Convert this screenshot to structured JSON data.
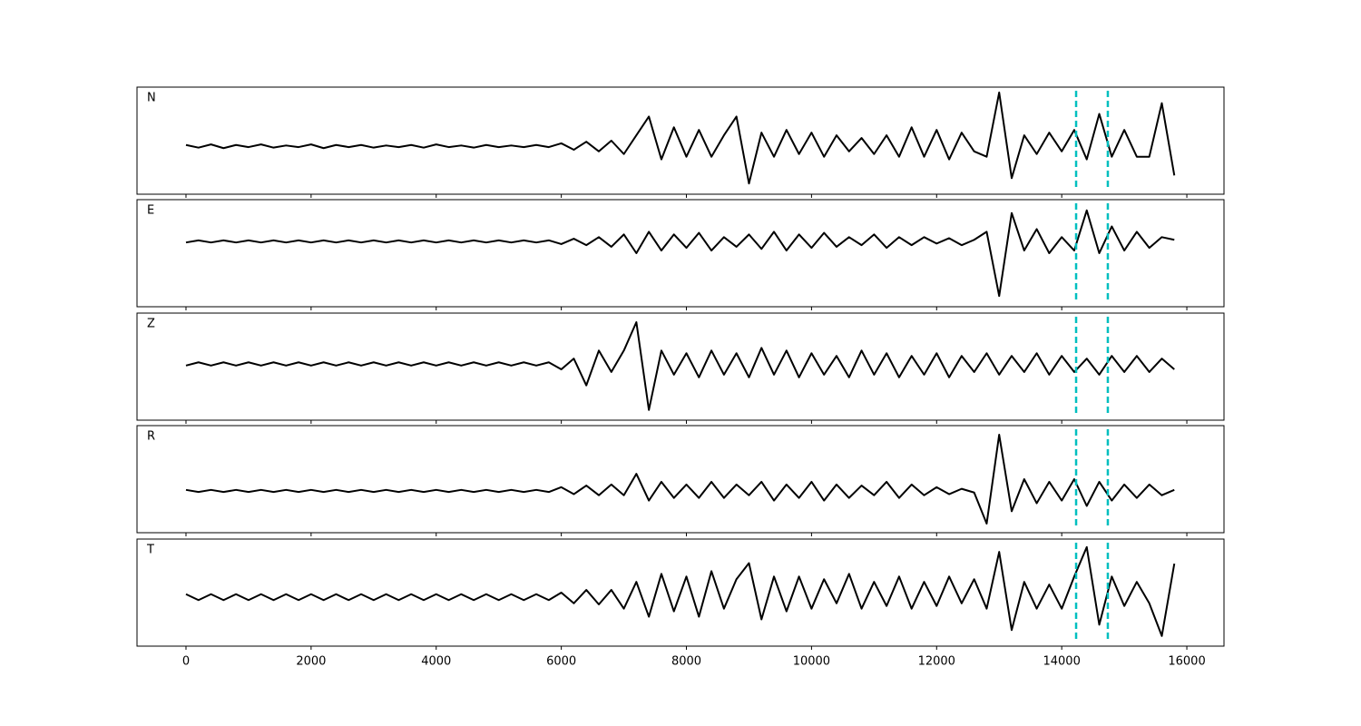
{
  "chart_data": [
    {
      "type": "line",
      "label": "N",
      "xlim": [
        -783,
        16594
      ],
      "ylim": [
        -1,
        1
      ],
      "x": [
        0,
        200,
        400,
        600,
        800,
        1000,
        1200,
        1400,
        1600,
        1800,
        2000,
        2200,
        2400,
        2600,
        2800,
        3000,
        3200,
        3400,
        3600,
        3800,
        4000,
        4200,
        4400,
        4600,
        4800,
        5000,
        5200,
        5400,
        5600,
        5800,
        6000,
        6200,
        6400,
        6600,
        6800,
        7000,
        7200,
        7400,
        7600,
        7800,
        8000,
        8200,
        8400,
        8600,
        8800,
        9000,
        9200,
        9400,
        9600,
        9800,
        10000,
        10200,
        10400,
        10600,
        10800,
        11000,
        11200,
        11400,
        11600,
        11800,
        12000,
        12200,
        12400,
        12600,
        12800,
        13000,
        13200,
        13400,
        13600,
        13800,
        14000,
        14200,
        14400,
        14600,
        14800,
        15000,
        15200,
        15400,
        15600,
        15800
      ],
      "series": [
        {
          "color": "#000000",
          "values": [
            -0.08,
            -0.13,
            -0.07,
            -0.14,
            -0.08,
            -0.12,
            -0.07,
            -0.13,
            -0.09,
            -0.12,
            -0.07,
            -0.14,
            -0.08,
            -0.12,
            -0.08,
            -0.13,
            -0.09,
            -0.12,
            -0.08,
            -0.13,
            -0.07,
            -0.12,
            -0.09,
            -0.13,
            -0.08,
            -0.12,
            -0.09,
            -0.12,
            -0.08,
            -0.12,
            -0.05,
            -0.17,
            -0.02,
            -0.2,
            0.0,
            -0.25,
            0.1,
            0.45,
            -0.35,
            0.25,
            -0.3,
            0.2,
            -0.3,
            0.1,
            0.45,
            -0.8,
            0.15,
            -0.3,
            0.2,
            -0.25,
            0.15,
            -0.3,
            0.1,
            -0.2,
            0.05,
            -0.25,
            0.1,
            -0.3,
            0.25,
            -0.3,
            0.2,
            -0.35,
            0.15,
            -0.2,
            -0.3,
            0.9,
            -0.7,
            0.1,
            -0.25,
            0.15,
            -0.2,
            0.2,
            -0.35,
            0.5,
            -0.3,
            0.2,
            -0.3,
            -0.3,
            0.7,
            -0.65
          ]
        }
      ],
      "vlines": [
        14230,
        14737
      ],
      "vline_color": "#00bfbf"
    },
    {
      "type": "line",
      "label": "E",
      "xlim": [
        -783,
        16594
      ],
      "ylim": [
        -1,
        1
      ],
      "x": [
        0,
        200,
        400,
        600,
        800,
        1000,
        1200,
        1400,
        1600,
        1800,
        2000,
        2200,
        2400,
        2600,
        2800,
        3000,
        3200,
        3400,
        3600,
        3800,
        4000,
        4200,
        4400,
        4600,
        4800,
        5000,
        5200,
        5400,
        5600,
        5800,
        6000,
        6200,
        6400,
        6600,
        6800,
        7000,
        7200,
        7400,
        7600,
        7800,
        8000,
        8200,
        8400,
        8600,
        8800,
        9000,
        9200,
        9400,
        9600,
        9800,
        10000,
        10200,
        10400,
        10600,
        10800,
        11000,
        11200,
        11400,
        11600,
        11800,
        12000,
        12200,
        12400,
        12600,
        12800,
        13000,
        13200,
        13400,
        13600,
        13800,
        14000,
        14200,
        14400,
        14600,
        14800,
        15000,
        15200,
        15400,
        15600,
        15800
      ],
      "series": [
        {
          "color": "#000000",
          "values": [
            0.2,
            0.24,
            0.2,
            0.24,
            0.2,
            0.24,
            0.2,
            0.24,
            0.2,
            0.24,
            0.2,
            0.24,
            0.2,
            0.24,
            0.2,
            0.24,
            0.2,
            0.24,
            0.2,
            0.24,
            0.2,
            0.24,
            0.2,
            0.24,
            0.2,
            0.24,
            0.2,
            0.24,
            0.2,
            0.24,
            0.17,
            0.27,
            0.15,
            0.3,
            0.12,
            0.35,
            0.0,
            0.4,
            0.05,
            0.35,
            0.1,
            0.38,
            0.05,
            0.3,
            0.12,
            0.35,
            0.08,
            0.4,
            0.05,
            0.35,
            0.1,
            0.38,
            0.12,
            0.3,
            0.15,
            0.35,
            0.1,
            0.3,
            0.15,
            0.3,
            0.18,
            0.28,
            0.15,
            0.25,
            0.4,
            -0.8,
            0.75,
            0.05,
            0.45,
            0.0,
            0.3,
            0.05,
            0.8,
            0.0,
            0.5,
            0.05,
            0.4,
            0.1,
            0.3,
            0.25
          ]
        }
      ],
      "vlines": [
        14230,
        14737
      ],
      "vline_color": "#00bfbf"
    },
    {
      "type": "line",
      "label": "Z",
      "xlim": [
        -783,
        16594
      ],
      "ylim": [
        -1,
        1
      ],
      "x": [
        0,
        200,
        400,
        600,
        800,
        1000,
        1200,
        1400,
        1600,
        1800,
        2000,
        2200,
        2400,
        2600,
        2800,
        3000,
        3200,
        3400,
        3600,
        3800,
        4000,
        4200,
        4400,
        4600,
        4800,
        5000,
        5200,
        5400,
        5600,
        5800,
        6000,
        6200,
        6400,
        6600,
        6800,
        7000,
        7200,
        7400,
        7600,
        7800,
        8000,
        8200,
        8400,
        8600,
        8800,
        9000,
        9200,
        9400,
        9600,
        9800,
        10000,
        10200,
        10400,
        10600,
        10800,
        11000,
        11200,
        11400,
        11600,
        11800,
        12000,
        12200,
        12400,
        12600,
        12800,
        13000,
        13200,
        13400,
        13600,
        13800,
        14000,
        14200,
        14400,
        14600,
        14800,
        15000,
        15200,
        15400,
        15600,
        15800
      ],
      "series": [
        {
          "color": "#000000",
          "values": [
            0.02,
            0.08,
            0.02,
            0.08,
            0.02,
            0.08,
            0.02,
            0.08,
            0.02,
            0.08,
            0.02,
            0.08,
            0.02,
            0.08,
            0.02,
            0.08,
            0.02,
            0.08,
            0.02,
            0.08,
            0.02,
            0.08,
            0.02,
            0.08,
            0.02,
            0.08,
            0.02,
            0.08,
            0.02,
            0.08,
            -0.05,
            0.15,
            -0.35,
            0.3,
            -0.1,
            0.3,
            0.83,
            -0.81,
            0.3,
            -0.15,
            0.25,
            -0.2,
            0.3,
            -0.15,
            0.25,
            -0.2,
            0.35,
            -0.15,
            0.3,
            -0.2,
            0.25,
            -0.15,
            0.2,
            -0.2,
            0.3,
            -0.15,
            0.25,
            -0.2,
            0.2,
            -0.15,
            0.25,
            -0.2,
            0.2,
            -0.1,
            0.25,
            -0.15,
            0.2,
            -0.1,
            0.25,
            -0.15,
            0.2,
            -0.1,
            0.15,
            -0.15,
            0.2,
            -0.1,
            0.2,
            -0.1,
            0.15,
            -0.05
          ]
        }
      ],
      "vlines": [
        14230,
        14737
      ],
      "vline_color": "#00bfbf"
    },
    {
      "type": "line",
      "label": "R",
      "xlim": [
        -783,
        16594
      ],
      "ylim": [
        -1,
        1
      ],
      "x": [
        0,
        200,
        400,
        600,
        800,
        1000,
        1200,
        1400,
        1600,
        1800,
        2000,
        2200,
        2400,
        2600,
        2800,
        3000,
        3200,
        3400,
        3600,
        3800,
        4000,
        4200,
        4400,
        4600,
        4800,
        5000,
        5200,
        5400,
        5600,
        5800,
        6000,
        6200,
        6400,
        6600,
        6800,
        7000,
        7200,
        7400,
        7600,
        7800,
        8000,
        8200,
        8400,
        8600,
        8800,
        9000,
        9200,
        9400,
        9600,
        9800,
        10000,
        10200,
        10400,
        10600,
        10800,
        11000,
        11200,
        11400,
        11600,
        11800,
        12000,
        12200,
        12400,
        12600,
        12800,
        13000,
        13200,
        13400,
        13600,
        13800,
        14000,
        14200,
        14400,
        14600,
        14800,
        15000,
        15200,
        15400,
        15600,
        15800
      ],
      "series": [
        {
          "color": "#000000",
          "values": [
            -0.2,
            -0.24,
            -0.2,
            -0.24,
            -0.2,
            -0.24,
            -0.2,
            -0.24,
            -0.2,
            -0.24,
            -0.2,
            -0.24,
            -0.2,
            -0.24,
            -0.2,
            -0.24,
            -0.2,
            -0.24,
            -0.2,
            -0.24,
            -0.2,
            -0.24,
            -0.2,
            -0.24,
            -0.2,
            -0.24,
            -0.2,
            -0.24,
            -0.2,
            -0.24,
            -0.15,
            -0.28,
            -0.12,
            -0.3,
            -0.1,
            -0.3,
            0.1,
            -0.4,
            -0.05,
            -0.35,
            -0.1,
            -0.35,
            -0.05,
            -0.35,
            -0.1,
            -0.3,
            -0.05,
            -0.4,
            -0.1,
            -0.35,
            -0.05,
            -0.4,
            -0.1,
            -0.35,
            -0.12,
            -0.3,
            -0.05,
            -0.35,
            -0.1,
            -0.3,
            -0.15,
            -0.28,
            -0.18,
            -0.25,
            -0.83,
            0.83,
            -0.6,
            0.0,
            -0.45,
            -0.05,
            -0.4,
            0.0,
            -0.5,
            -0.05,
            -0.4,
            -0.1,
            -0.35,
            -0.1,
            -0.3,
            -0.2
          ]
        }
      ],
      "vlines": [
        14230,
        14737
      ],
      "vline_color": "#00bfbf"
    },
    {
      "type": "line",
      "label": "T",
      "xlim": [
        -783,
        16594
      ],
      "ylim": [
        -1,
        1
      ],
      "xticks": [
        0,
        2000,
        4000,
        6000,
        8000,
        10000,
        12000,
        14000,
        16000
      ],
      "x": [
        0,
        200,
        400,
        600,
        800,
        1000,
        1200,
        1400,
        1600,
        1800,
        2000,
        2200,
        2400,
        2600,
        2800,
        3000,
        3200,
        3400,
        3600,
        3800,
        4000,
        4200,
        4400,
        4600,
        4800,
        5000,
        5200,
        5400,
        5600,
        5800,
        6000,
        6200,
        6400,
        6600,
        6800,
        7000,
        7200,
        7400,
        7600,
        7800,
        8000,
        8200,
        8400,
        8600,
        8800,
        9000,
        9200,
        9400,
        9600,
        9800,
        10000,
        10200,
        10400,
        10600,
        10800,
        11000,
        11200,
        11400,
        11600,
        11800,
        12000,
        12200,
        12400,
        12600,
        12800,
        13000,
        13200,
        13400,
        13600,
        13800,
        14000,
        14200,
        14400,
        14600,
        14800,
        15000,
        15200,
        15400,
        15600,
        15800
      ],
      "series": [
        {
          "color": "#000000",
          "values": [
            -0.03,
            -0.14,
            -0.03,
            -0.14,
            -0.03,
            -0.14,
            -0.03,
            -0.14,
            -0.03,
            -0.14,
            -0.03,
            -0.14,
            -0.03,
            -0.14,
            -0.03,
            -0.14,
            -0.03,
            -0.14,
            -0.03,
            -0.14,
            -0.03,
            -0.14,
            -0.03,
            -0.14,
            -0.03,
            -0.14,
            -0.03,
            -0.14,
            -0.03,
            -0.14,
            0.0,
            -0.2,
            0.05,
            -0.22,
            0.05,
            -0.3,
            0.2,
            -0.45,
            0.35,
            -0.35,
            0.3,
            -0.45,
            0.4,
            -0.3,
            0.25,
            0.55,
            -0.5,
            0.3,
            -0.35,
            0.3,
            -0.3,
            0.25,
            -0.2,
            0.35,
            -0.3,
            0.2,
            -0.25,
            0.3,
            -0.3,
            0.2,
            -0.25,
            0.3,
            -0.2,
            0.25,
            -0.3,
            0.76,
            -0.7,
            0.2,
            -0.3,
            0.15,
            -0.3,
            0.3,
            0.85,
            -0.6,
            0.3,
            -0.25,
            0.2,
            -0.2,
            -0.81,
            0.54
          ]
        }
      ],
      "vlines": [
        14230,
        14737
      ],
      "vline_color": "#00bfbf"
    }
  ]
}
